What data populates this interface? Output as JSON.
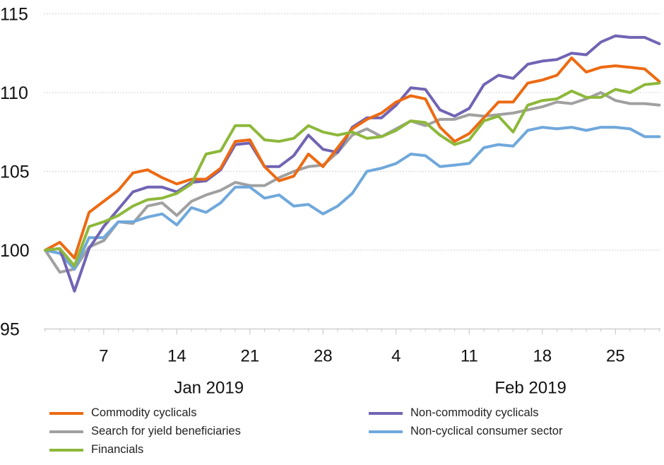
{
  "chart_data": {
    "type": "line",
    "title": "",
    "xlabel": "",
    "ylabel": "",
    "ylim": [
      95,
      115
    ],
    "yticks": [
      95,
      100,
      105,
      110,
      115
    ],
    "grid": true,
    "legend_position": "bottom",
    "x": [
      "2019-01-01",
      "2019-01-02",
      "2019-01-03",
      "2019-01-04",
      "2019-01-07",
      "2019-01-08",
      "2019-01-09",
      "2019-01-10",
      "2019-01-11",
      "2019-01-14",
      "2019-01-15",
      "2019-01-16",
      "2019-01-17",
      "2019-01-18",
      "2019-01-21",
      "2019-01-22",
      "2019-01-23",
      "2019-01-24",
      "2019-01-25",
      "2019-01-28",
      "2019-01-29",
      "2019-01-30",
      "2019-01-31",
      "2019-02-01",
      "2019-02-04",
      "2019-02-05",
      "2019-02-06",
      "2019-02-07",
      "2019-02-08",
      "2019-02-11",
      "2019-02-12",
      "2019-02-13",
      "2019-02-14",
      "2019-02-15",
      "2019-02-18",
      "2019-02-19",
      "2019-02-20",
      "2019-02-21",
      "2019-02-22",
      "2019-02-25",
      "2019-02-26",
      "2019-02-27",
      "2019-02-28"
    ],
    "xtick_labels": [
      {
        "date": "2019-01-07",
        "label": "7"
      },
      {
        "date": "2019-01-14",
        "label": "14"
      },
      {
        "date": "2019-01-21",
        "label": "21"
      },
      {
        "date": "2019-01-28",
        "label": "28"
      },
      {
        "date": "2019-02-04",
        "label": "4"
      },
      {
        "date": "2019-02-11",
        "label": "11"
      },
      {
        "date": "2019-02-18",
        "label": "18"
      },
      {
        "date": "2019-02-25",
        "label": "25"
      }
    ],
    "month_labels": [
      {
        "label": "Jan 2019",
        "center_date": "2019-01-16"
      },
      {
        "label": "Feb 2019",
        "center_date": "2019-02-15"
      }
    ],
    "series": [
      {
        "name": "Commodity cyclicals",
        "color": "#ED6A12",
        "values": [
          100.0,
          100.5,
          99.5,
          102.4,
          103.1,
          103.8,
          104.9,
          105.1,
          104.6,
          104.2,
          104.5,
          104.5,
          105.2,
          106.9,
          107.0,
          105.3,
          104.4,
          104.7,
          106.1,
          105.3,
          106.5,
          107.7,
          108.3,
          108.7,
          109.4,
          109.8,
          109.6,
          107.8,
          106.9,
          107.4,
          108.4,
          109.4,
          109.4,
          110.6,
          110.8,
          111.1,
          112.2,
          111.3,
          111.6,
          111.7,
          111.6,
          111.5,
          110.7
        ]
      },
      {
        "name": "Non-commodity cyclicals",
        "color": "#7164B4",
        "values": [
          100.0,
          100.1,
          97.4,
          100.1,
          101.5,
          102.6,
          103.7,
          104.0,
          104.0,
          103.7,
          104.3,
          104.4,
          105.1,
          106.7,
          106.8,
          105.3,
          105.3,
          106.0,
          107.3,
          106.4,
          106.2,
          107.8,
          108.4,
          108.4,
          109.2,
          110.3,
          110.2,
          108.9,
          108.5,
          109.0,
          110.5,
          111.1,
          110.9,
          111.8,
          112.0,
          112.1,
          112.5,
          112.4,
          113.2,
          113.6,
          113.5,
          113.5,
          113.1
        ]
      },
      {
        "name": "Search for yield beneficiaries",
        "color": "#A0A0A0",
        "values": [
          100.0,
          98.6,
          98.8,
          100.2,
          100.6,
          101.8,
          101.7,
          102.8,
          103.0,
          102.2,
          103.1,
          103.5,
          103.8,
          104.3,
          104.1,
          104.1,
          104.6,
          105.0,
          105.3,
          105.4,
          106.2,
          107.3,
          107.7,
          107.2,
          107.7,
          108.2,
          107.9,
          108.3,
          108.3,
          108.6,
          108.5,
          108.6,
          108.7,
          108.9,
          109.1,
          109.4,
          109.3,
          109.6,
          110.0,
          109.5,
          109.3,
          109.3,
          109.2
        ]
      },
      {
        "name": "Non-cyclical consumer sector",
        "color": "#6FA8DC",
        "values": [
          100.0,
          99.8,
          98.8,
          100.8,
          100.8,
          101.8,
          101.8,
          102.1,
          102.3,
          101.6,
          102.7,
          102.4,
          103.0,
          104.0,
          104.0,
          103.3,
          103.5,
          102.8,
          102.9,
          102.3,
          102.8,
          103.6,
          105.0,
          105.2,
          105.5,
          106.1,
          106.0,
          105.3,
          105.4,
          105.5,
          106.5,
          106.7,
          106.6,
          107.6,
          107.8,
          107.7,
          107.8,
          107.6,
          107.8,
          107.8,
          107.7,
          107.2,
          107.2
        ]
      },
      {
        "name": "Financials",
        "color": "#8DB83A",
        "values": [
          100.0,
          100.1,
          99.0,
          101.5,
          101.8,
          102.2,
          102.8,
          103.2,
          103.3,
          103.6,
          104.2,
          106.1,
          106.3,
          107.9,
          107.9,
          107.0,
          106.9,
          107.1,
          107.9,
          107.5,
          107.3,
          107.5,
          107.1,
          107.2,
          107.6,
          108.2,
          108.1,
          107.3,
          106.7,
          107.0,
          108.2,
          108.5,
          107.5,
          109.2,
          109.5,
          109.6,
          110.1,
          109.7,
          109.7,
          110.2,
          110.0,
          110.5,
          110.6
        ]
      }
    ]
  }
}
